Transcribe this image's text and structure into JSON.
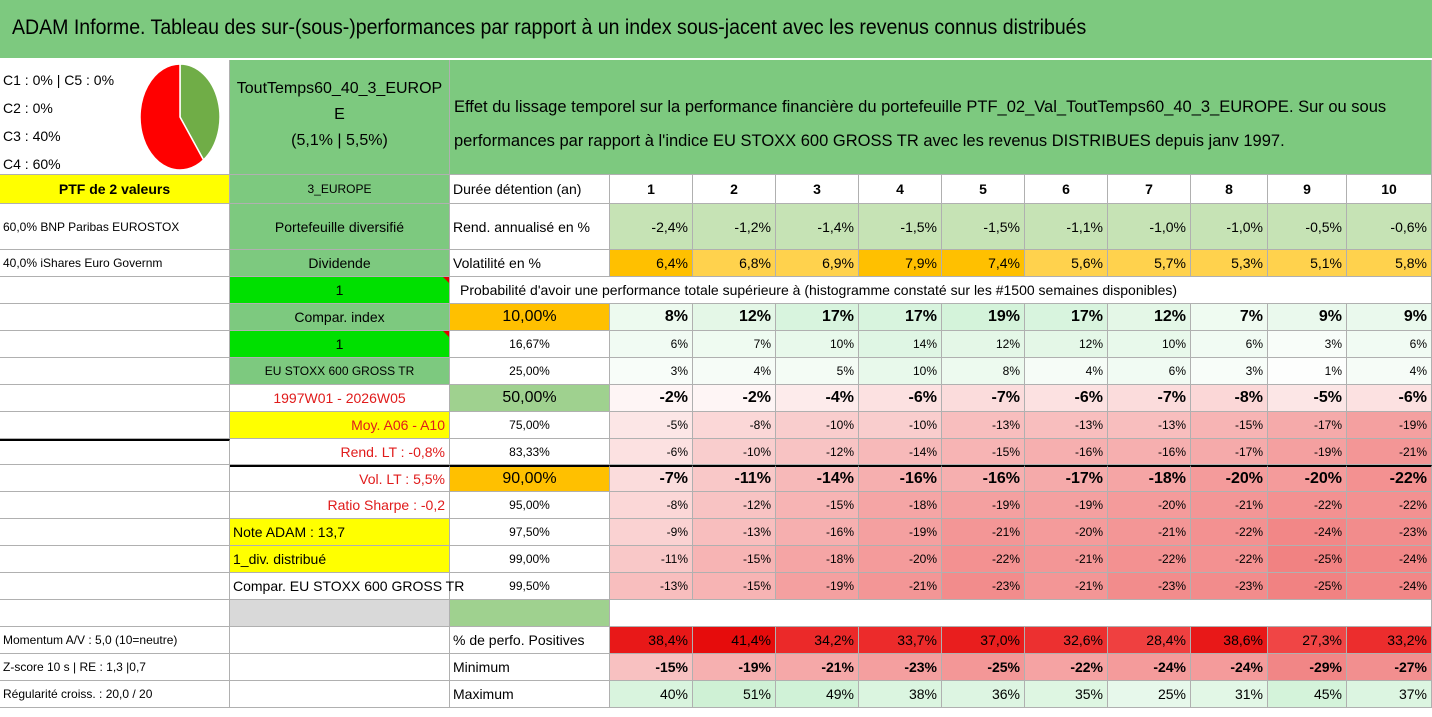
{
  "title": "ADAM Informe. Tableau des sur-(sous-)performances par rapport à un index sous-jacent avec les revenus connus distribués",
  "legend": [
    "C1 : 0% | C5 : 0%",
    "C2 : 0%",
    "C3 : 40%",
    "C4 : 60%"
  ],
  "pie": {
    "slices": [
      {
        "label": "C3",
        "value": 40,
        "color": "#70ad47"
      },
      {
        "label": "C4",
        "value": 60,
        "color": "#ff0000"
      }
    ]
  },
  "portfolio_name_1": "ToutTemps60_40_3_EUROP",
  "portfolio_name_2": "E",
  "portfolio_name_3": "(5,1% | 5,5%)",
  "description": "Effet du lissage temporel sur la performance financière du portefeuille PTF_02_Val_ToutTemps60_40_3_EUROPE. Sur ou sous performances par rapport à l'indice EU STOXX 600 GROSS TR avec les revenus DISTRIBUES depuis janv 1997.",
  "left_col": {
    "ptf_label": "PTF de 2 valeurs",
    "holding1": "60,0% BNP Paribas EUROSTOX",
    "holding2": "40,0% iShares Euro Governm",
    "momentum": "Momentum A/V : 5,0 (10=neutre)",
    "zscore": "Z-score 10 s | RE : 1,3 |0,7",
    "regularite": "Régularité croiss. : 20,0 / 20"
  },
  "mid_col": {
    "region": "3_EUROPE",
    "diversified": "Portefeuille diversifié",
    "dividende": "Dividende",
    "one_a": "1",
    "compar_index": "Compar. index",
    "one_b": "1",
    "index_name": "EU STOXX 600 GROSS TR",
    "period": "1997W01 - 2026W05",
    "moy": "Moy. A06 - A10",
    "rend_lt": "Rend. LT : -0,8%",
    "vol_lt": "Vol. LT : 5,5%",
    "sharpe": "Ratio Sharpe : -0,2",
    "note": "Note ADAM : 13,7",
    "div_distrib": "1_div. distribué",
    "compar_full": "Compar. EU STOXX 600 GROSS TR"
  },
  "row_labels": {
    "duree": "Durée détention (an)",
    "rend": "Rend. annualisé en %",
    "vol": "Volatilité en %",
    "prob": "Probabilité d'avoir une performance totale supérieure à (histogramme constaté sur les #1500 semaines disponibles)",
    "pos": "% de perfo. Positives",
    "min": "Minimum",
    "max": "Maximum"
  },
  "years": [
    "1",
    "2",
    "3",
    "4",
    "5",
    "6",
    "7",
    "8",
    "9",
    "10"
  ],
  "rend": [
    "-2,4%",
    "-1,2%",
    "-1,4%",
    "-1,5%",
    "-1,5%",
    "-1,1%",
    "-1,0%",
    "-1,0%",
    "-0,5%",
    "-0,6%"
  ],
  "vol": [
    "6,4%",
    "6,8%",
    "6,9%",
    "7,9%",
    "7,4%",
    "5,6%",
    "5,7%",
    "5,3%",
    "5,1%",
    "5,8%"
  ],
  "pct_rows": [
    {
      "p": "10,00%",
      "bold": true,
      "v": [
        "8%",
        "12%",
        "17%",
        "17%",
        "19%",
        "17%",
        "12%",
        "7%",
        "9%",
        "9%"
      ]
    },
    {
      "p": "16,67%",
      "bold": false,
      "v": [
        "6%",
        "7%",
        "10%",
        "14%",
        "12%",
        "12%",
        "10%",
        "6%",
        "3%",
        "6%"
      ]
    },
    {
      "p": "25,00%",
      "bold": false,
      "v": [
        "3%",
        "4%",
        "5%",
        "10%",
        "8%",
        "4%",
        "6%",
        "3%",
        "1%",
        "4%"
      ]
    },
    {
      "p": "50,00%",
      "bold": true,
      "v": [
        "-2%",
        "-2%",
        "-4%",
        "-6%",
        "-7%",
        "-6%",
        "-7%",
        "-8%",
        "-5%",
        "-6%"
      ]
    },
    {
      "p": "75,00%",
      "bold": false,
      "v": [
        "-5%",
        "-8%",
        "-10%",
        "-10%",
        "-13%",
        "-13%",
        "-13%",
        "-15%",
        "-17%",
        "-19%"
      ]
    },
    {
      "p": "83,33%",
      "bold": false,
      "v": [
        "-6%",
        "-10%",
        "-12%",
        "-14%",
        "-15%",
        "-16%",
        "-16%",
        "-17%",
        "-19%",
        "-21%"
      ]
    },
    {
      "p": "90,00%",
      "bold": true,
      "v": [
        "-7%",
        "-11%",
        "-14%",
        "-16%",
        "-16%",
        "-17%",
        "-18%",
        "-20%",
        "-20%",
        "-22%"
      ]
    },
    {
      "p": "95,00%",
      "bold": false,
      "v": [
        "-8%",
        "-12%",
        "-15%",
        "-18%",
        "-19%",
        "-19%",
        "-20%",
        "-21%",
        "-22%",
        "-22%"
      ]
    },
    {
      "p": "97,50%",
      "bold": false,
      "v": [
        "-9%",
        "-13%",
        "-16%",
        "-19%",
        "-21%",
        "-20%",
        "-21%",
        "-22%",
        "-24%",
        "-23%"
      ]
    },
    {
      "p": "99,00%",
      "bold": false,
      "v": [
        "-11%",
        "-15%",
        "-18%",
        "-20%",
        "-22%",
        "-21%",
        "-22%",
        "-22%",
        "-25%",
        "-24%"
      ]
    },
    {
      "p": "99,50%",
      "bold": false,
      "v": [
        "-13%",
        "-15%",
        "-19%",
        "-21%",
        "-23%",
        "-21%",
        "-23%",
        "-23%",
        "-25%",
        "-24%"
      ]
    }
  ],
  "pos": [
    "38,4%",
    "41,4%",
    "34,2%",
    "33,7%",
    "37,0%",
    "32,6%",
    "28,4%",
    "38,6%",
    "27,3%",
    "33,2%"
  ],
  "min": [
    "-15%",
    "-19%",
    "-21%",
    "-23%",
    "-25%",
    "-22%",
    "-24%",
    "-24%",
    "-29%",
    "-27%"
  ],
  "max": [
    "40%",
    "51%",
    "49%",
    "38%",
    "36%",
    "35%",
    "25%",
    "31%",
    "45%",
    "37%"
  ],
  "colors": {
    "header_green": "#7dc97f",
    "yellow": "#ffff00",
    "bright_green": "#00e000",
    "orange": "#ffc000",
    "red_text": "#e01b1b"
  }
}
